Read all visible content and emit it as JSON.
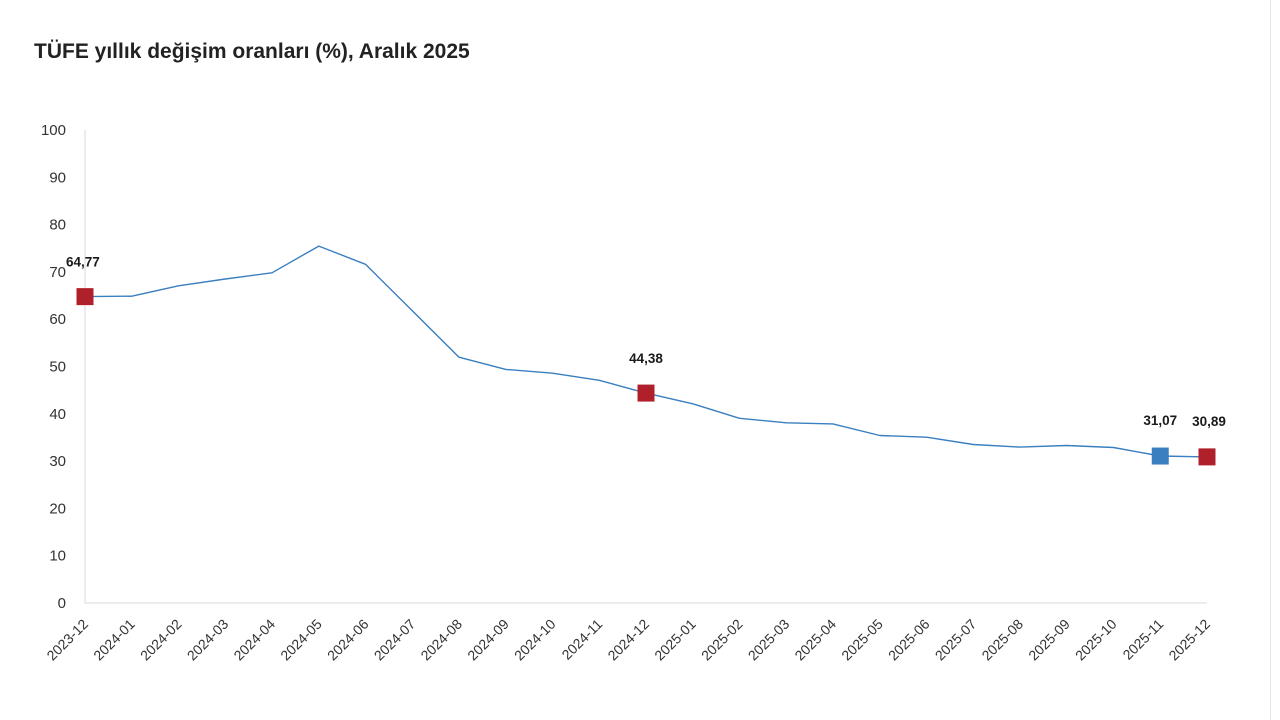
{
  "chart_data": {
    "type": "line",
    "title": "TÜFE yıllık değişim oranları (%), Aralık 2025",
    "xlabel": "",
    "ylabel": "",
    "ylim": [
      0,
      100
    ],
    "y_ticks": [
      "0",
      "10",
      "20",
      "30",
      "40",
      "50",
      "60",
      "70",
      "80",
      "90",
      "100"
    ],
    "y_tick_values": [
      0,
      10,
      20,
      30,
      40,
      50,
      60,
      70,
      80,
      90,
      100
    ],
    "grid": false,
    "categories": [
      "2023-12",
      "2024-01",
      "2024-02",
      "2024-03",
      "2024-04",
      "2024-05",
      "2024-06",
      "2024-07",
      "2024-08",
      "2024-09",
      "2024-10",
      "2024-11",
      "2024-12",
      "2025-01",
      "2025-02",
      "2025-03",
      "2025-04",
      "2025-05",
      "2025-06",
      "2025-07",
      "2025-08",
      "2025-09",
      "2025-10",
      "2025-11",
      "2025-12"
    ],
    "series": [
      {
        "name": "TÜFE yıllık değişim",
        "color": "#3a7fbf",
        "values": [
          64.77,
          64.86,
          67.07,
          68.5,
          69.8,
          75.45,
          71.6,
          61.78,
          51.97,
          49.38,
          48.58,
          47.09,
          44.38,
          42.12,
          39.05,
          38.1,
          37.86,
          35.41,
          35.05,
          33.52,
          32.95,
          33.29,
          32.87,
          31.07,
          30.89
        ]
      }
    ],
    "highlighted_points": [
      {
        "category": "2023-12",
        "value": 64.77,
        "label": "64,77",
        "color": "#b0202a"
      },
      {
        "category": "2024-12",
        "value": 44.38,
        "label": "44,38",
        "color": "#b0202a"
      },
      {
        "category": "2025-11",
        "value": 31.07,
        "label": "31,07",
        "color": "#3a7fbf"
      },
      {
        "category": "2025-12",
        "value": 30.89,
        "label": "30,89",
        "color": "#b0202a"
      }
    ],
    "axis_color": "#d9d9d9"
  }
}
